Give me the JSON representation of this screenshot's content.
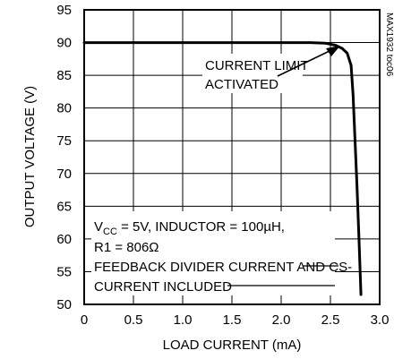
{
  "chart_data": {
    "type": "line",
    "xlabel": "LOAD CURRENT (mA)",
    "ylabel": "OUTPUT VOLTAGE (V)",
    "xlim": [
      0,
      3.0
    ],
    "ylim": [
      50,
      95
    ],
    "x_ticks": [
      "0",
      "0.5",
      "1.0",
      "1.5",
      "2.0",
      "2.5",
      "3.0"
    ],
    "y_ticks": [
      "50",
      "55",
      "60",
      "65",
      "70",
      "75",
      "80",
      "85",
      "90",
      "95"
    ],
    "grid": true,
    "series": [
      {
        "points": [
          [
            0,
            90.0
          ],
          [
            0.5,
            90.0
          ],
          [
            1.0,
            90.0
          ],
          [
            1.5,
            90.0
          ],
          [
            2.0,
            90.0
          ],
          [
            2.3,
            90.0
          ],
          [
            2.45,
            89.9
          ],
          [
            2.55,
            89.6
          ],
          [
            2.62,
            89.1
          ],
          [
            2.67,
            88.4
          ],
          [
            2.71,
            86.5
          ],
          [
            2.73,
            82.0
          ],
          [
            2.75,
            75.0
          ],
          [
            2.77,
            68.0
          ],
          [
            2.79,
            60.0
          ],
          [
            2.81,
            51.5
          ]
        ]
      }
    ],
    "annotations": {
      "current_limit_line1": "CURRENT LIMIT",
      "current_limit_line2": "ACTIVATED",
      "cond_v": "V",
      "cond_sub": "CC",
      "cond_rest": " = 5V, INDUCTOR = 100µH,",
      "cond_line2": "R1 = 806Ω",
      "cond_line3": "FEEDBACK DIVIDER CURRENT AND CS-",
      "cond_line4": "CURRENT INCLUDED"
    },
    "chart_id": "MAX1932 toc06"
  }
}
